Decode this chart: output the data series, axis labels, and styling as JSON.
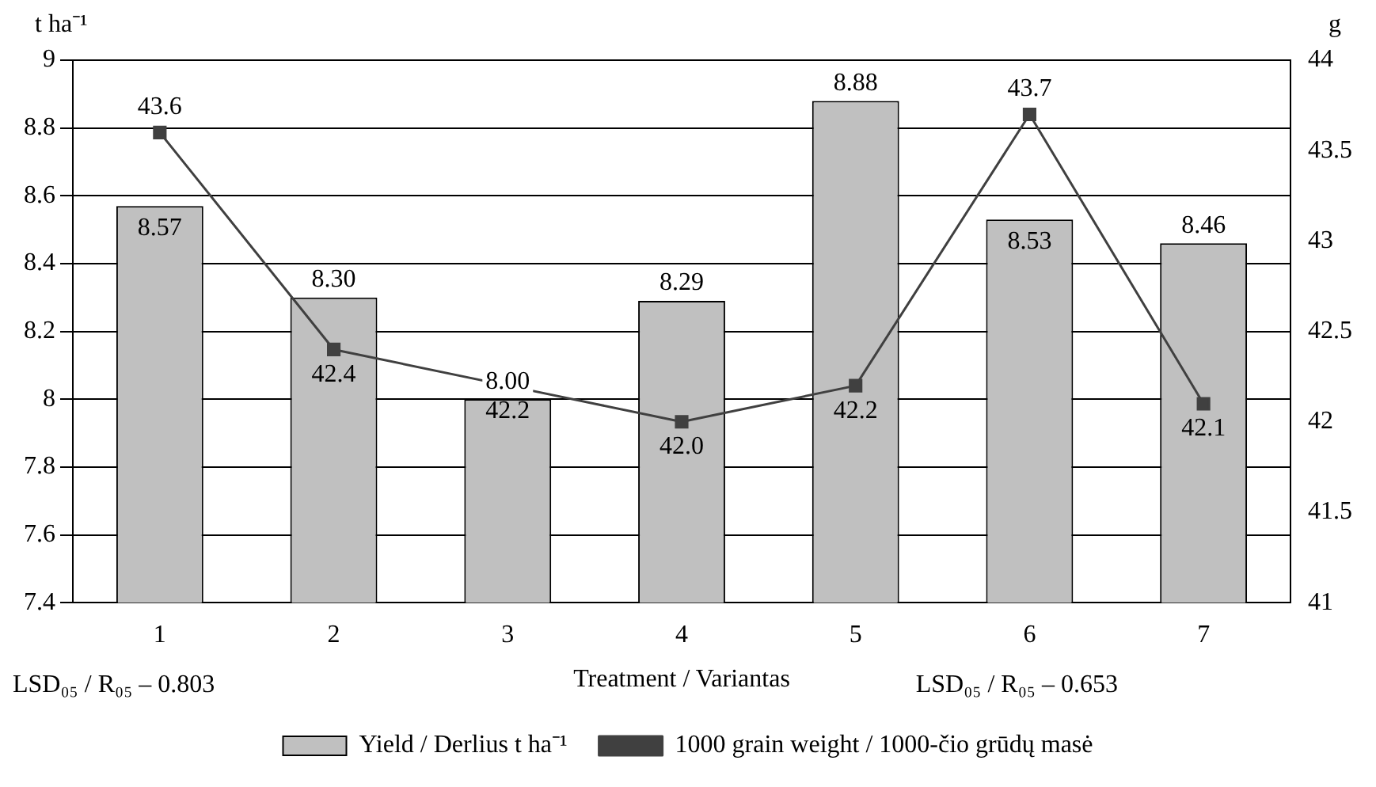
{
  "chart_data": {
    "type": "bar",
    "xlabel": "Treatment / Variantas",
    "ylabel": "t ha⁻¹",
    "y2label": "g",
    "categories": [
      "1",
      "2",
      "3",
      "4",
      "5",
      "6",
      "7"
    ],
    "series": [
      {
        "name": "Yield / Derlius t ha⁻¹",
        "color": "#c0c0c0",
        "values": [
          8.57,
          8.3,
          8.0,
          8.29,
          8.88,
          8.53,
          8.46
        ],
        "value_labels": [
          "8.57",
          "8.30",
          "8.00",
          "8.29",
          "8.88",
          "8.53",
          "8.46"
        ]
      },
      {
        "name": "1000 grain weight / 1000-čio grūdų masė",
        "type": "line",
        "axis": "y2",
        "color": "#404040",
        "values": [
          43.6,
          42.4,
          42.2,
          42.0,
          42.2,
          43.7,
          42.1
        ],
        "value_labels": [
          "43.6",
          "42.4",
          "42.2",
          "42.0",
          "42.2",
          "43.7",
          "42.1"
        ]
      }
    ],
    "ylim": [
      7.4,
      9
    ],
    "yticks": [
      7.4,
      7.6,
      7.8,
      8,
      8.2,
      8.4,
      8.6,
      8.8,
      9
    ],
    "y2lim": [
      41,
      44
    ],
    "y2ticks": [
      41,
      41.5,
      42,
      42.5,
      43,
      43.5,
      44
    ],
    "grid": "y",
    "legend": "bottom",
    "marker": "square",
    "annotations": [
      "LSD₀₅ / R₀₅ – 0.803",
      "LSD₀₅ / R₀₅ – 0.653"
    ]
  }
}
